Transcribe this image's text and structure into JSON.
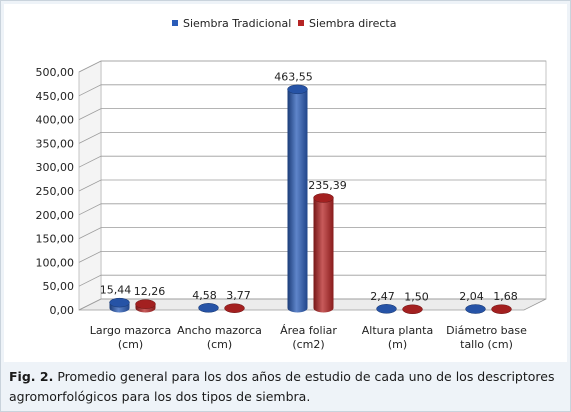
{
  "chart_data": {
    "type": "bar",
    "categories": [
      [
        "Largo mazorca",
        "(cm)"
      ],
      [
        "Ancho mazorca",
        "(cm)"
      ],
      [
        "Área foliar",
        "(cm2)"
      ],
      [
        "Altura planta",
        "(m)"
      ],
      [
        "Diámetro base",
        "tallo (cm)"
      ]
    ],
    "series": [
      {
        "name": "Siembra Tradicional",
        "color": "#2a5cb8",
        "values": [
          15.44,
          4.58,
          463.55,
          2.47,
          2.04
        ],
        "labels": [
          "15,44",
          "4,58",
          "463,55",
          "2,47",
          "2,04"
        ]
      },
      {
        "name": "Siembra directa",
        "color": "#b52424",
        "values": [
          12.26,
          3.77,
          235.39,
          1.5,
          1.68
        ],
        "labels": [
          "12,26",
          "3,77",
          "235,39",
          "1,50",
          "1,68"
        ]
      }
    ],
    "ylim": [
      0,
      500
    ],
    "yticks": [
      "0,00",
      "50,00",
      "100,00",
      "150,00",
      "200,00",
      "250,00",
      "300,00",
      "350,00",
      "400,00",
      "450,00",
      "500,00"
    ],
    "grid": true,
    "legend": "top"
  },
  "caption": {
    "label": "Fig. 2.",
    "text": "Promedio general para los dos años de estudio de cada uno de los descriptores agromorfológicos para los dos tipos de siembra."
  }
}
